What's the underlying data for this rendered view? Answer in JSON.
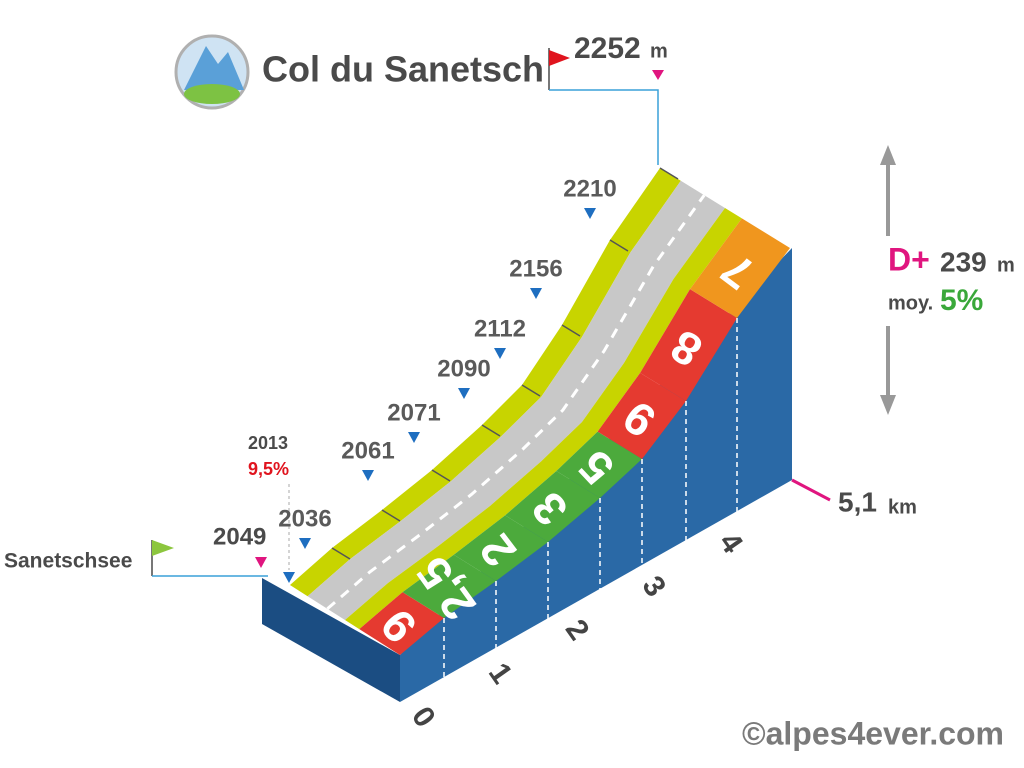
{
  "header": {
    "title": "Col du Sanetsch"
  },
  "summit": {
    "altitude": "2252",
    "unit": "m"
  },
  "start": {
    "name": "Sanetschsee",
    "altitude": "2049"
  },
  "low_point": {
    "altitude": "2013",
    "gradient": "9,5%"
  },
  "altitudes": [
    "2036",
    "2061",
    "2071",
    "2090",
    "2112",
    "2156",
    "2210"
  ],
  "segments": [
    {
      "gradient": "9",
      "color": "#e53a30"
    },
    {
      "gradient": "2,5",
      "color": "#4caa3c"
    },
    {
      "gradient": "2",
      "color": "#4caa3c"
    },
    {
      "gradient": "3",
      "color": "#4caa3c"
    },
    {
      "gradient": "5",
      "color": "#4caa3c"
    },
    {
      "gradient": "9",
      "color": "#e53a30"
    },
    {
      "gradient": "8",
      "color": "#e53a30"
    },
    {
      "gradient": "7",
      "color": "#f0961e"
    }
  ],
  "km_labels": [
    "0",
    "1",
    "2",
    "3",
    "4"
  ],
  "distance": {
    "value": "5,1",
    "unit": "km"
  },
  "summary": {
    "gain_label": "D+",
    "gain": "239",
    "gain_unit": "m",
    "avg_label": "moy.",
    "avg": "5%"
  },
  "copyright": "©alpes4ever.com"
}
